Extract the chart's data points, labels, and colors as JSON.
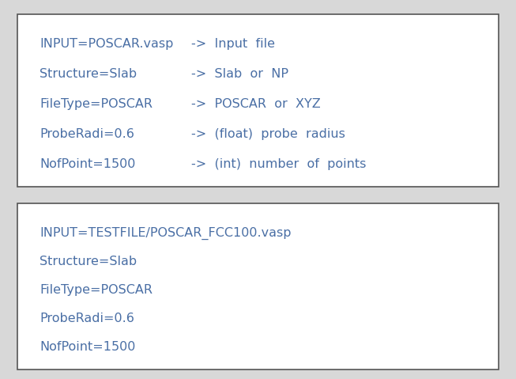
{
  "bg_color": "#d8d8d8",
  "box_bg_color": "#ffffff",
  "box_border_color": "#555555",
  "text_color": "#4a6fa5",
  "box1": {
    "lines_col1": [
      "INPUT=POSCAR.vasp",
      "Structure=Slab",
      "FileType=POSCAR",
      "ProbeRadi=0.6",
      "NofPoint=1500"
    ],
    "lines_col2": [
      "->  Input  file",
      "->  Slab  or  NP",
      "->  POSCAR  or  XYZ",
      "->  (float)  probe  radius",
      "->  (int)  number  of  points"
    ]
  },
  "box2": {
    "lines": [
      "INPUT=TESTFILE/POSCAR_FCC100.vasp",
      "Structure=Slab",
      "FileType=POSCAR",
      "ProbeRadi=0.6",
      "NofPoint=1500"
    ]
  },
  "font_size": 11.5,
  "font_family": "DejaVu Sans"
}
